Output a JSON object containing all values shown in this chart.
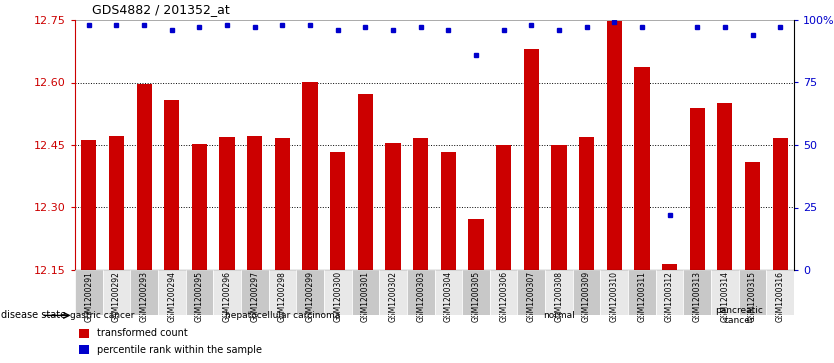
{
  "title": "GDS4882 / 201352_at",
  "samples": [
    "GSM1200291",
    "GSM1200292",
    "GSM1200293",
    "GSM1200294",
    "GSM1200295",
    "GSM1200296",
    "GSM1200297",
    "GSM1200298",
    "GSM1200299",
    "GSM1200300",
    "GSM1200301",
    "GSM1200302",
    "GSM1200303",
    "GSM1200304",
    "GSM1200305",
    "GSM1200306",
    "GSM1200307",
    "GSM1200308",
    "GSM1200309",
    "GSM1200310",
    "GSM1200311",
    "GSM1200312",
    "GSM1200313",
    "GSM1200314",
    "GSM1200315",
    "GSM1200316"
  ],
  "bar_values": [
    12.462,
    12.472,
    12.597,
    12.558,
    12.453,
    12.47,
    12.472,
    12.466,
    12.601,
    12.432,
    12.572,
    12.454,
    12.468,
    12.432,
    12.273,
    12.451,
    12.68,
    12.449,
    12.47,
    12.748,
    12.638,
    12.165,
    12.54,
    12.55,
    12.41,
    12.468
  ],
  "percentile_values": [
    98,
    98,
    98,
    96,
    97,
    98,
    97,
    98,
    98,
    96,
    97,
    96,
    97,
    96,
    86,
    96,
    98,
    96,
    97,
    99,
    97,
    22,
    97,
    97,
    94,
    97
  ],
  "bar_color": "#cc0000",
  "percentile_color": "#0000cc",
  "ylim_left": [
    12.15,
    12.75
  ],
  "ylim_right": [
    0,
    100
  ],
  "yticks_left": [
    12.15,
    12.3,
    12.45,
    12.6,
    12.75
  ],
  "yticks_right": [
    0,
    25,
    50,
    75,
    100
  ],
  "disease_groups": [
    {
      "label": "gastric cancer",
      "start": 0,
      "end": 2,
      "color": "#c8f0c8"
    },
    {
      "label": "hepatocellular carcinoma",
      "start": 2,
      "end": 13,
      "color": "#c8f0c8"
    },
    {
      "label": "normal",
      "start": 13,
      "end": 22,
      "color": "#90ee90"
    },
    {
      "label": "pancreatic\ncancer",
      "start": 22,
      "end": 26,
      "color": "#c8f0c8"
    }
  ],
  "bg_color": "#ffffff",
  "grid_color": "#000000",
  "tick_color_left": "#cc0000",
  "tick_color_right": "#0000cc",
  "cell_colors": [
    "#c8c8c8",
    "#e8e8e8"
  ]
}
